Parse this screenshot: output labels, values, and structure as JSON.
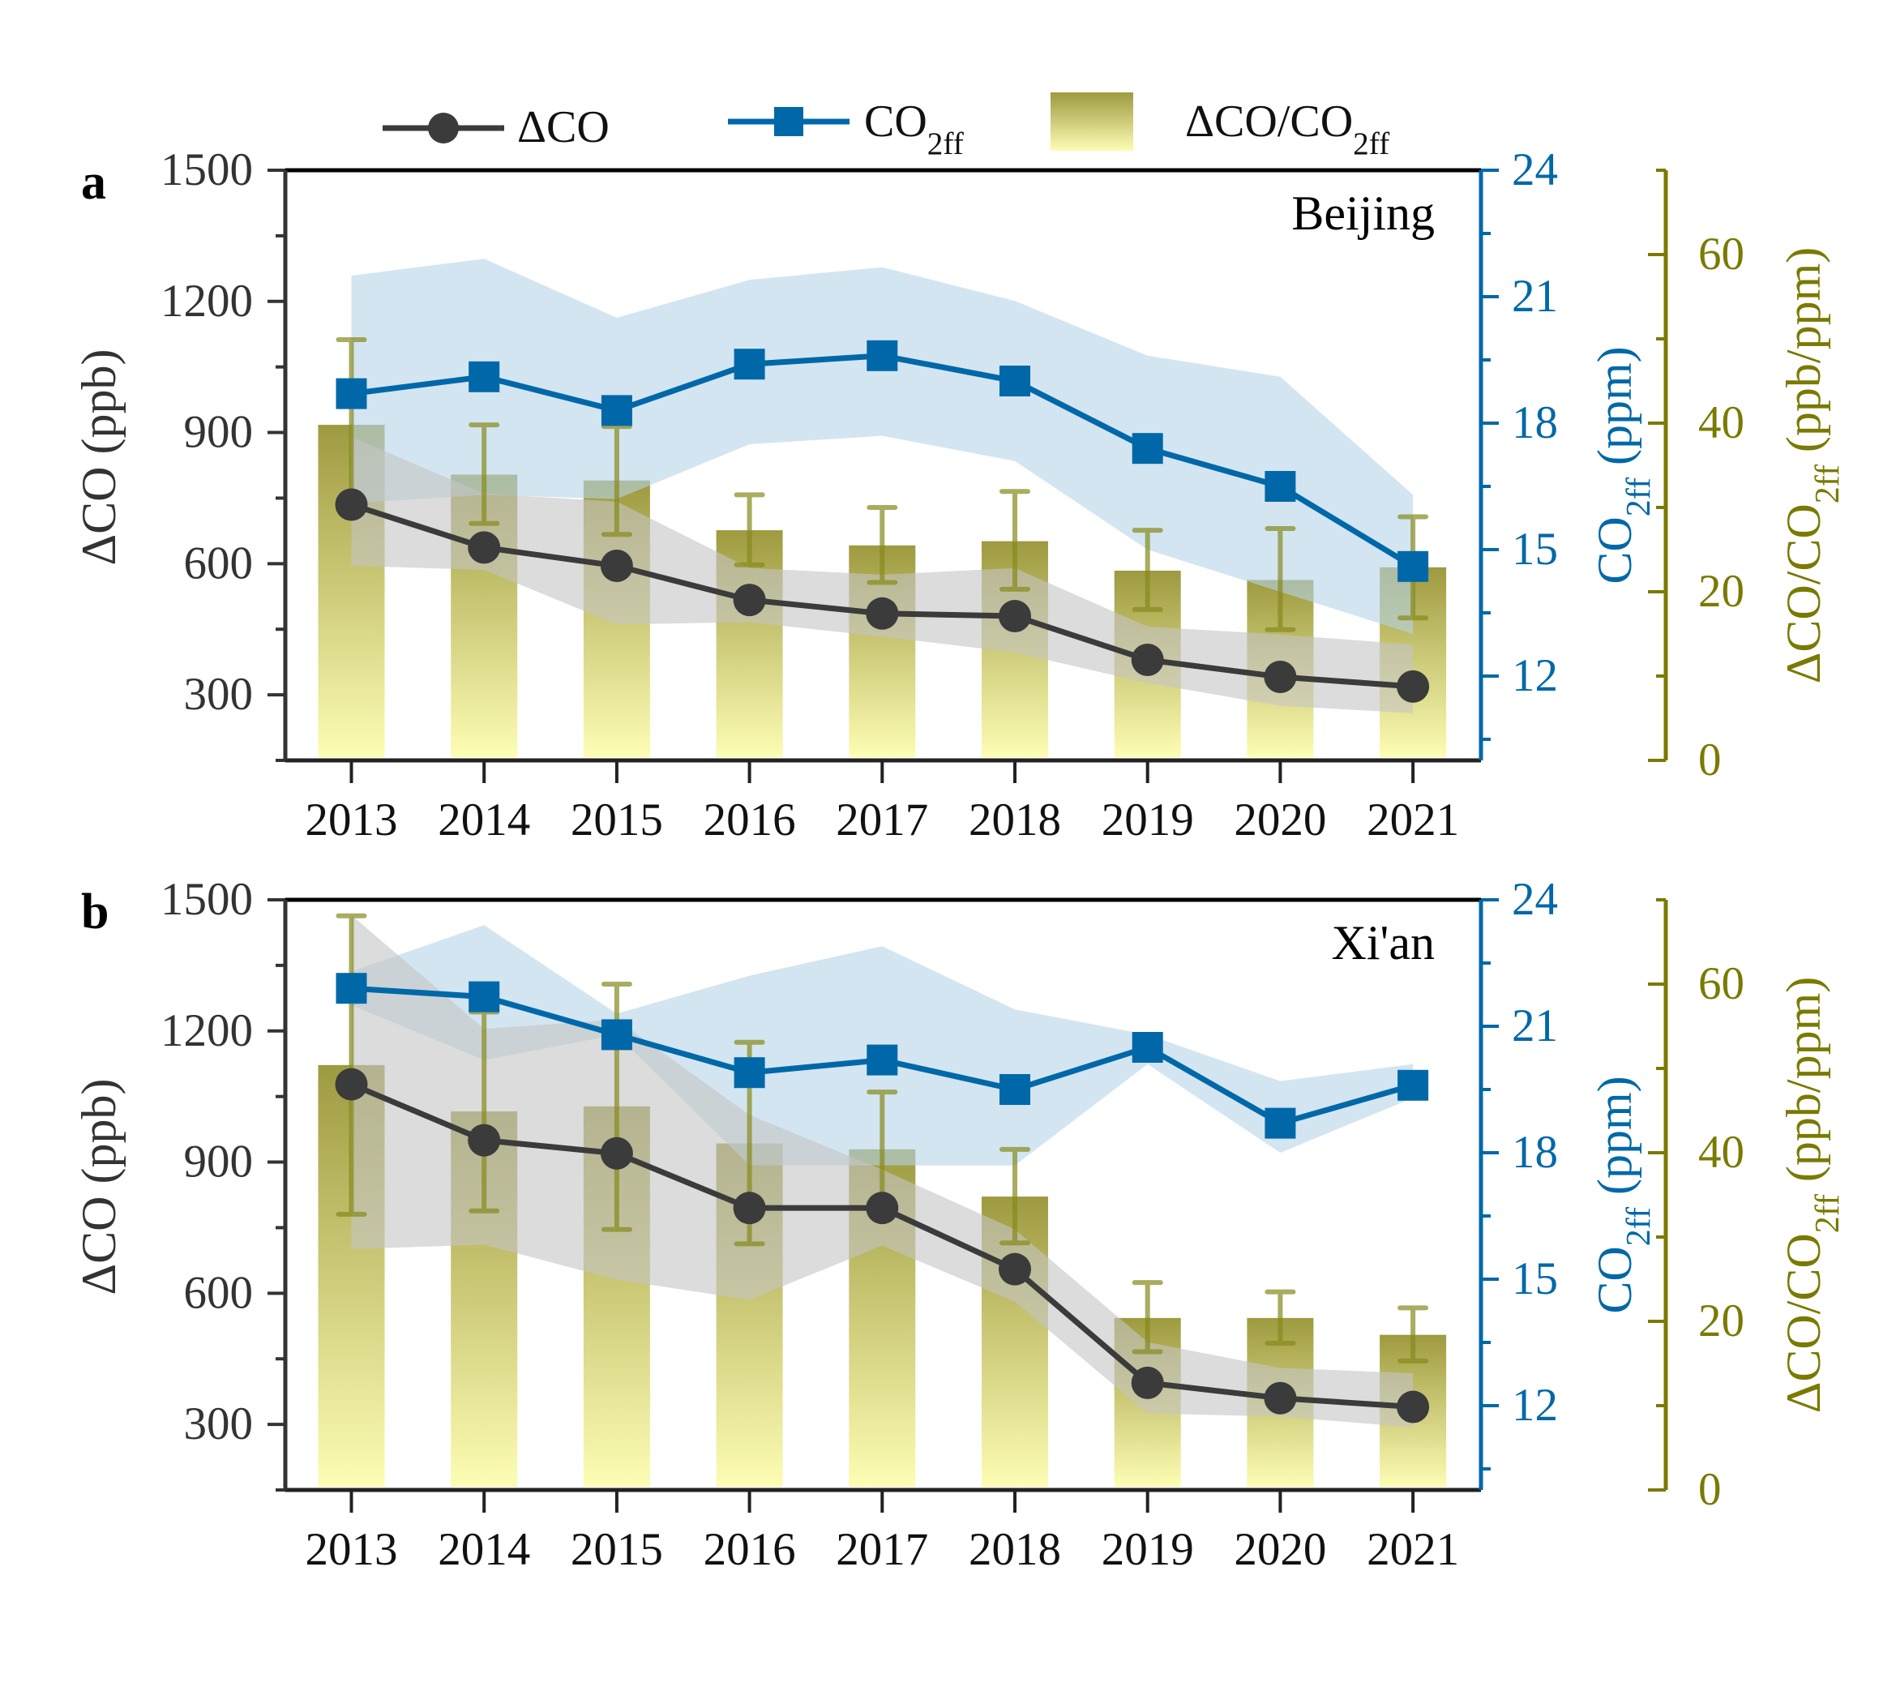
{
  "colors": {
    "dco": "#3b3b3b",
    "co2ff": "#0068a8",
    "ratio_axis": "#7a7a00",
    "bar_top": "#9e9a40",
    "bar_bottom": "#fdfdb4",
    "dco_band": "#c4c4c4",
    "co2ff_band": "#b6d4e8",
    "error_bar": "#878a1c"
  },
  "legend": {
    "dco": {
      "pre": "ΔCO",
      "sub": "",
      "post": ""
    },
    "co2ff": {
      "pre": "CO",
      "sub": "2ff",
      "post": ""
    },
    "ratio": {
      "pre": "ΔCO/CO",
      "sub": "2ff",
      "post": ""
    }
  },
  "chart_data": [
    {
      "type": "bar+line",
      "panel_label": "a",
      "site": "Beijing",
      "categories": [
        "2013",
        "2014",
        "2015",
        "2016",
        "2017",
        "2018",
        "2019",
        "2020",
        "2021"
      ],
      "left_axis": {
        "label": {
          "pre": "ΔCO (ppb)",
          "sub": "",
          "post": ""
        },
        "range": [
          150,
          1500
        ],
        "ticks": [
          300,
          600,
          900,
          1200,
          1500
        ]
      },
      "right_axis": {
        "label": {
          "pre": "CO",
          "sub": "2ff",
          "post": " (ppm)"
        },
        "range": [
          10,
          24
        ],
        "ticks": [
          12,
          15,
          18,
          21,
          24
        ]
      },
      "ratio_axis": {
        "label": {
          "pre": "ΔCO/CO",
          "sub": "2ff",
          "post": " (ppb/ppm)"
        },
        "range": [
          0,
          70
        ],
        "ticks": [
          0,
          20,
          40,
          60
        ]
      },
      "series": {
        "dco": {
          "values": [
            735,
            637,
            595,
            517,
            486,
            480,
            380,
            341,
            319
          ],
          "band_upper": [
            890,
            760,
            742,
            590,
            575,
            590,
            456,
            438,
            415
          ],
          "band_lower": [
            595,
            586,
            461,
            466,
            433,
            397,
            327,
            275,
            258
          ]
        },
        "co2ff": {
          "values": [
            18.7,
            19.1,
            18.3,
            19.4,
            19.6,
            19.0,
            17.4,
            16.5,
            14.6
          ],
          "band_upper": [
            21.5,
            21.9,
            20.5,
            21.4,
            21.7,
            20.9,
            19.6,
            19.1,
            16.3
          ],
          "band_lower": [
            16.1,
            16.3,
            16.2,
            17.5,
            17.7,
            17.1,
            15.0,
            14.0,
            13.0
          ]
        },
        "ratio": {
          "values": [
            39.8,
            33.9,
            33.2,
            27.3,
            25.5,
            26.0,
            22.5,
            21.4,
            22.9
          ],
          "err_upper": [
            49.9,
            39.8,
            39.6,
            31.5,
            30.0,
            31.9,
            27.3,
            27.5,
            28.9
          ],
          "err_lower": [
            29.7,
            28.1,
            26.8,
            23.2,
            21.1,
            20.3,
            17.9,
            15.5,
            16.9
          ]
        }
      }
    },
    {
      "type": "bar+line",
      "panel_label": "b",
      "site": "Xi'an",
      "categories": [
        "2013",
        "2014",
        "2015",
        "2016",
        "2017",
        "2018",
        "2019",
        "2020",
        "2021"
      ],
      "left_axis": {
        "label": {
          "pre": "ΔCO (ppb)",
          "sub": "",
          "post": ""
        },
        "range": [
          150,
          1500
        ],
        "ticks": [
          300,
          600,
          900,
          1200,
          1500
        ]
      },
      "right_axis": {
        "label": {
          "pre": "CO",
          "sub": "2ff",
          "post": " (ppm)"
        },
        "range": [
          10,
          24
        ],
        "ticks": [
          12,
          15,
          18,
          21,
          24
        ]
      },
      "ratio_axis": {
        "label": {
          "pre": "ΔCO/CO",
          "sub": "2ff",
          "post": " (ppb/ppm)"
        },
        "range": [
          0,
          70
        ],
        "ticks": [
          0,
          20,
          40,
          60
        ]
      },
      "series": {
        "dco": {
          "values": [
            1078,
            950,
            920,
            795,
            795,
            655,
            395,
            360,
            340
          ],
          "band_upper": [
            1465,
            1205,
            1226,
            1008,
            883,
            746,
            488,
            429,
            417
          ],
          "band_lower": [
            701,
            711,
            631,
            585,
            709,
            581,
            325,
            318,
            293
          ]
        },
        "co2ff": {
          "values": [
            21.9,
            21.7,
            20.8,
            19.9,
            20.2,
            19.5,
            20.5,
            18.7,
            19.6
          ],
          "band_upper": [
            22.3,
            23.4,
            21.3,
            22.2,
            22.9,
            21.4,
            20.8,
            19.7,
            20.1
          ],
          "band_lower": [
            21.5,
            20.2,
            20.8,
            17.7,
            17.7,
            17.7,
            20.1,
            18.0,
            19.3
          ]
        },
        "ratio": {
          "values": [
            50.4,
            44.9,
            45.5,
            41.1,
            40.4,
            34.8,
            20.4,
            20.4,
            18.4
          ],
          "err_upper": [
            68.1,
            56.7,
            60.0,
            53.1,
            47.2,
            40.4,
            24.6,
            23.5,
            21.6
          ],
          "err_lower": [
            32.7,
            33.1,
            30.9,
            29.2,
            33.6,
            29.3,
            16.4,
            17.4,
            15.3
          ]
        }
      }
    }
  ]
}
